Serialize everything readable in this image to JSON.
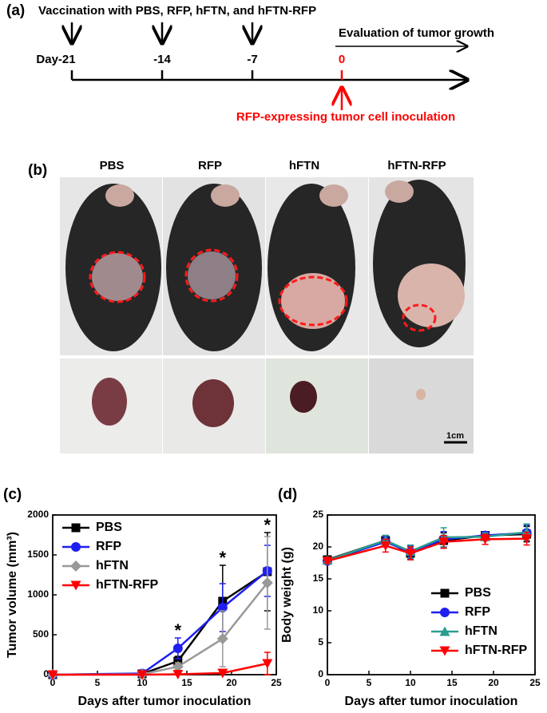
{
  "panel_a": {
    "label": "(a)",
    "title": "Vaccination with PBS, RFP, hFTN, and hFTN-RFP",
    "days": [
      "Day-21",
      "-14",
      "-7",
      "0"
    ],
    "evaluation": "Evaluation of tumor growth",
    "inoculation": "RFP-expressing tumor cell inoculation"
  },
  "panel_b": {
    "label": "(b)",
    "groups": [
      "PBS",
      "RFP",
      "hFTN",
      "hFTN-RFP"
    ],
    "scale_bar": "1cm"
  },
  "chart_data": [
    {
      "type": "line",
      "panel_label": "(c)",
      "xlabel": "Days after tumor inoculation",
      "ylabel": "Tumor volume (mm³)",
      "x": [
        0,
        10,
        14,
        19,
        24
      ],
      "xlim": [
        0,
        25
      ],
      "xticks": [
        0,
        5,
        10,
        15,
        20,
        25
      ],
      "ylim": [
        0,
        2000
      ],
      "yticks": [
        0,
        500,
        1000,
        1500,
        2000
      ],
      "legend": "upper left",
      "series": [
        {
          "name": "PBS",
          "color": "#000000",
          "marker": "square",
          "values": [
            0,
            10,
            170,
            920,
            1290
          ],
          "errors": [
            0,
            5,
            60,
            450,
            490
          ]
        },
        {
          "name": "RFP",
          "color": "#1f1ff0",
          "marker": "circle",
          "values": [
            0,
            15,
            330,
            840,
            1300
          ],
          "errors": [
            0,
            5,
            130,
            300,
            320
          ]
        },
        {
          "name": "hFTN",
          "color": "#999999",
          "marker": "diamond",
          "values": [
            0,
            5,
            100,
            450,
            1150
          ],
          "errors": [
            0,
            5,
            50,
            350,
            580
          ]
        },
        {
          "name": "hFTN-RFP",
          "color": "#ff0000",
          "marker": "triangle-down",
          "values": [
            0,
            0,
            5,
            20,
            140
          ],
          "errors": [
            0,
            0,
            5,
            10,
            140
          ]
        }
      ],
      "annotations": [
        {
          "text": "*",
          "x": 14
        },
        {
          "text": "*",
          "x": 19
        },
        {
          "text": "*",
          "x": 24
        }
      ]
    },
    {
      "type": "line",
      "panel_label": "(d)",
      "xlabel": "Days after tumor inoculation",
      "ylabel": "Body weight (g)",
      "x": [
        0,
        7,
        10,
        14,
        19,
        24
      ],
      "xlim": [
        0,
        25
      ],
      "xticks": [
        0,
        5,
        10,
        15,
        20,
        25
      ],
      "ylim": [
        0,
        25
      ],
      "yticks": [
        0,
        5,
        10,
        15,
        20,
        25
      ],
      "legend": "lower right",
      "series": [
        {
          "name": "PBS",
          "color": "#000000",
          "marker": "square",
          "values": [
            18,
            21,
            19,
            21,
            21.8,
            22
          ],
          "errors": [
            0.3,
            0.8,
            1,
            1.2,
            0.6,
            1.2
          ]
        },
        {
          "name": "RFP",
          "color": "#1f1ff0",
          "marker": "circle",
          "values": [
            17.8,
            20.8,
            19.2,
            21.2,
            21.8,
            22.2
          ],
          "errors": [
            0.3,
            0.8,
            1,
            1.2,
            0.6,
            1.2
          ]
        },
        {
          "name": "hFTN",
          "color": "#2a9d8f",
          "marker": "triangle-up",
          "values": [
            17.9,
            21,
            19.3,
            21.5,
            21.6,
            22.3
          ],
          "errors": [
            0.3,
            0.8,
            1,
            1.5,
            0.6,
            1.3
          ]
        },
        {
          "name": "hFTN-RFP",
          "color": "#ff0000",
          "marker": "triangle-down",
          "values": [
            17.8,
            20.2,
            19,
            20.8,
            21.2,
            21.3
          ],
          "errors": [
            0.3,
            1,
            1,
            1,
            0.8,
            1
          ]
        }
      ]
    }
  ]
}
